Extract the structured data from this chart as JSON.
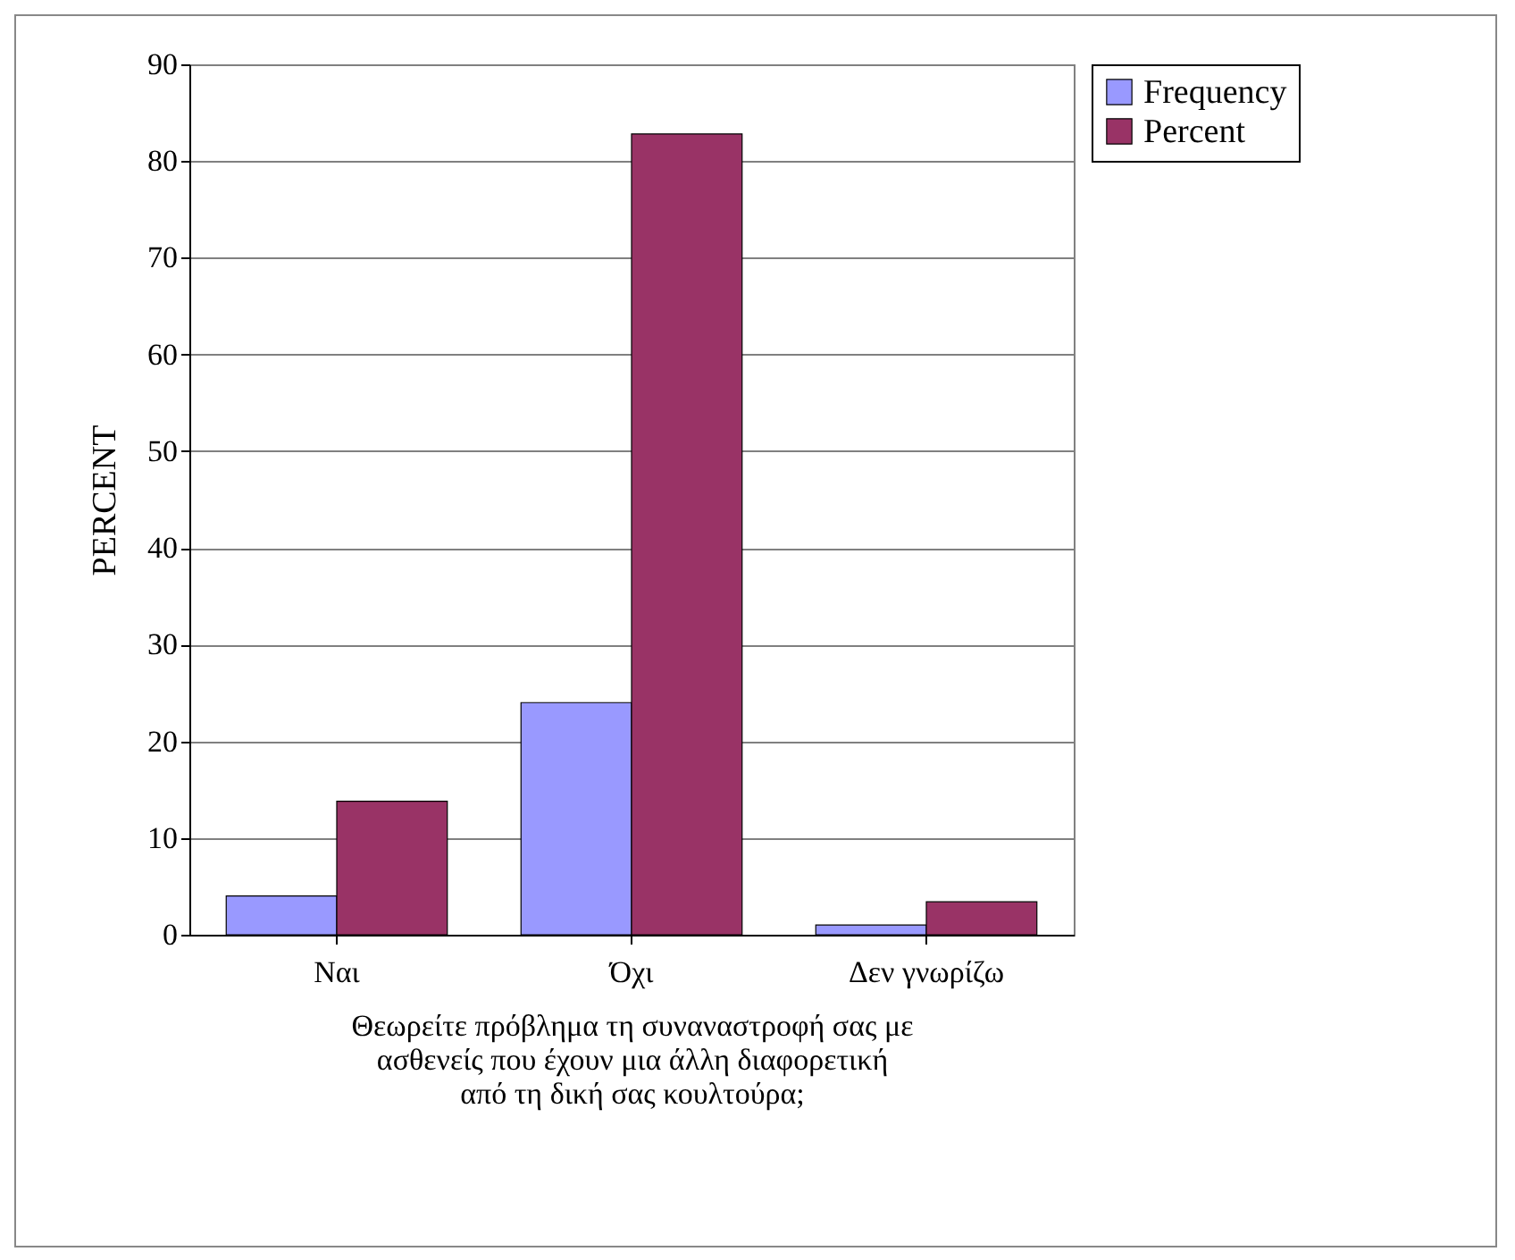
{
  "chart_data": {
    "type": "bar",
    "xlabel": "Θεωρείτε πρόβλημα τη συναναστροφή σας με ασθενείς που έχουν μια άλλη διαφορετική από τη δική σας κουλτούρα;",
    "ylabel": "PERCENT",
    "categories": [
      "Ναι",
      "Όχι",
      "Δεν γνωρίζω"
    ],
    "series": [
      {
        "name": "Frequency",
        "color": "#9999ff",
        "values": [
          4,
          24,
          1
        ]
      },
      {
        "name": "Percent",
        "color": "#993366",
        "values": [
          13.8,
          82.8,
          3.4
        ]
      }
    ],
    "ylim": [
      0,
      90
    ],
    "yticks": [
      0,
      10,
      20,
      30,
      40,
      50,
      60,
      70,
      80,
      90
    ],
    "grid": "y",
    "legend": "right"
  }
}
